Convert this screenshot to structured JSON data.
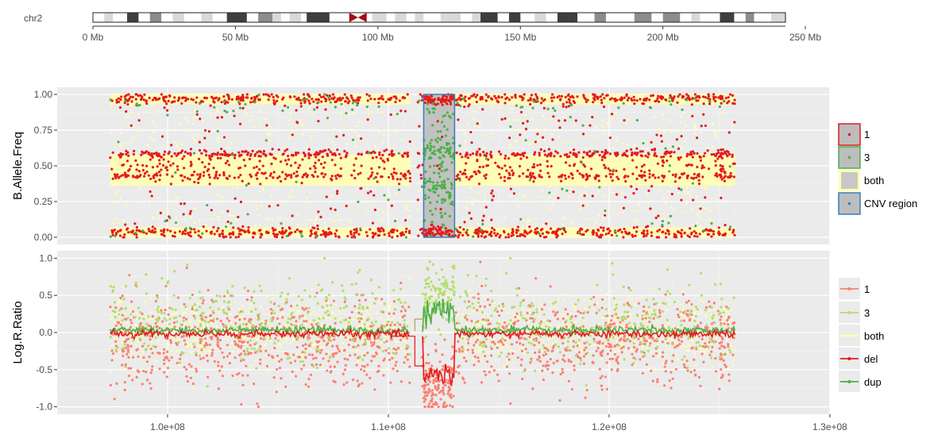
{
  "chart_data": [
    {
      "type": "ideogram",
      "chromosome_label": "chr2",
      "unit": "Mb",
      "xlim": [
        0,
        243
      ],
      "tick_labels": [
        "0 Mb",
        "50 Mb",
        "100 Mb",
        "150 Mb",
        "200 Mb",
        "250 Mb"
      ],
      "tick_values": [
        0,
        50,
        100,
        150,
        200,
        250
      ],
      "centromere_mb": 93,
      "bands": [
        {
          "start": 0,
          "end": 4,
          "stain": "white"
        },
        {
          "start": 4,
          "end": 7,
          "stain": "lightgray"
        },
        {
          "start": 7,
          "end": 12,
          "stain": "white"
        },
        {
          "start": 12,
          "end": 16,
          "stain": "darkgray"
        },
        {
          "start": 16,
          "end": 20,
          "stain": "white"
        },
        {
          "start": 20,
          "end": 24,
          "stain": "gray"
        },
        {
          "start": 24,
          "end": 28,
          "stain": "white"
        },
        {
          "start": 28,
          "end": 32,
          "stain": "lightgray"
        },
        {
          "start": 32,
          "end": 38,
          "stain": "white"
        },
        {
          "start": 38,
          "end": 42,
          "stain": "lightgray"
        },
        {
          "start": 42,
          "end": 47,
          "stain": "white"
        },
        {
          "start": 47,
          "end": 54,
          "stain": "darkgray"
        },
        {
          "start": 54,
          "end": 58,
          "stain": "white"
        },
        {
          "start": 58,
          "end": 63,
          "stain": "gray"
        },
        {
          "start": 63,
          "end": 66,
          "stain": "lightgray"
        },
        {
          "start": 66,
          "end": 69,
          "stain": "white"
        },
        {
          "start": 69,
          "end": 73,
          "stain": "lightgray"
        },
        {
          "start": 73,
          "end": 75,
          "stain": "white"
        },
        {
          "start": 75,
          "end": 83,
          "stain": "darkgray"
        },
        {
          "start": 83,
          "end": 90,
          "stain": "white"
        },
        {
          "start": 96,
          "end": 98,
          "stain": "white"
        },
        {
          "start": 98,
          "end": 103,
          "stain": "lightgray"
        },
        {
          "start": 103,
          "end": 106,
          "stain": "white"
        },
        {
          "start": 106,
          "end": 110,
          "stain": "lightgray"
        },
        {
          "start": 110,
          "end": 113,
          "stain": "white"
        },
        {
          "start": 113,
          "end": 116,
          "stain": "lightgray"
        },
        {
          "start": 116,
          "end": 122,
          "stain": "white"
        },
        {
          "start": 122,
          "end": 129,
          "stain": "lightgray"
        },
        {
          "start": 129,
          "end": 133,
          "stain": "white"
        },
        {
          "start": 133,
          "end": 136,
          "stain": "lightgray"
        },
        {
          "start": 136,
          "end": 142,
          "stain": "darkgray"
        },
        {
          "start": 142,
          "end": 146,
          "stain": "white"
        },
        {
          "start": 146,
          "end": 150,
          "stain": "darkgray"
        },
        {
          "start": 150,
          "end": 155,
          "stain": "white"
        },
        {
          "start": 155,
          "end": 159,
          "stain": "lightgray"
        },
        {
          "start": 159,
          "end": 163,
          "stain": "white"
        },
        {
          "start": 163,
          "end": 170,
          "stain": "darkgray"
        },
        {
          "start": 170,
          "end": 176,
          "stain": "white"
        },
        {
          "start": 176,
          "end": 180,
          "stain": "gray"
        },
        {
          "start": 180,
          "end": 190,
          "stain": "white"
        },
        {
          "start": 190,
          "end": 196,
          "stain": "gray"
        },
        {
          "start": 196,
          "end": 200,
          "stain": "white"
        },
        {
          "start": 200,
          "end": 206,
          "stain": "gray"
        },
        {
          "start": 206,
          "end": 210,
          "stain": "white"
        },
        {
          "start": 210,
          "end": 213,
          "stain": "lightgray"
        },
        {
          "start": 213,
          "end": 220,
          "stain": "white"
        },
        {
          "start": 220,
          "end": 225,
          "stain": "darkgray"
        },
        {
          "start": 225,
          "end": 229,
          "stain": "white"
        },
        {
          "start": 229,
          "end": 232,
          "stain": "gray"
        },
        {
          "start": 232,
          "end": 238,
          "stain": "white"
        },
        {
          "start": 238,
          "end": 243,
          "stain": "lightgray"
        }
      ]
    },
    {
      "type": "scatter",
      "ylabel": "B.Allele.Freq",
      "xlim": [
        95000000,
        130000000
      ],
      "ylim": [
        -0.05,
        1.05
      ],
      "y_ticks": [
        0,
        0.25,
        0.5,
        0.75,
        1
      ],
      "y_tick_labels": [
        "0.00",
        "0.25",
        "0.50",
        "0.75",
        "1.00"
      ],
      "grid": true,
      "legend_position": "right",
      "cnv_region": {
        "x_start": 111600000,
        "x_end": 113000000,
        "y_start": 0,
        "y_end": 1
      },
      "legend": [
        {
          "label": "1",
          "color": "#e41a1c",
          "kind": "point-box"
        },
        {
          "label": "3",
          "color": "#4daf4a",
          "kind": "point-box"
        },
        {
          "label": "both",
          "color": "#ffffb3",
          "kind": "fill"
        },
        {
          "label": "CNV region",
          "color": "#377eb8",
          "kind": "region"
        }
      ],
      "series": [
        {
          "name": "both",
          "color": "#ffffb3",
          "x_range": [
            97400000,
            125700000
          ],
          "bands": [
            0.99,
            0.94,
            0.5,
            0.42,
            0.06,
            0.01
          ]
        },
        {
          "name": "1",
          "color": "#e41a1c",
          "x_range": [
            97400000,
            125700000
          ],
          "bands": [
            0.97,
            0.92,
            0.56,
            0.44,
            0.08,
            0.02
          ]
        },
        {
          "name": "3",
          "color": "#4daf4a",
          "x_range": [
            97400000,
            125700000
          ],
          "bands": [
            0.92,
            0.5,
            0.08
          ]
        }
      ]
    },
    {
      "type": "scatter",
      "ylabel": "Log.R.Ratio",
      "xlim": [
        95000000,
        130000000
      ],
      "ylim": [
        -1.1,
        1.1
      ],
      "y_ticks": [
        -1,
        -0.5,
        0,
        0.5,
        1
      ],
      "y_tick_labels": [
        "-1.0",
        "-0.5",
        "0.0",
        "0.5",
        "1.0"
      ],
      "x_ticks": [
        100000000,
        110000000,
        120000000,
        130000000
      ],
      "x_tick_labels": [
        "1.0e+08",
        "1.1e+08",
        "1.2e+08",
        "1.3e+08"
      ],
      "grid": true,
      "legend_position": "right",
      "legend": [
        {
          "label": "1",
          "color": "#fb8072",
          "kind": "point-line"
        },
        {
          "label": "3",
          "color": "#b3de69",
          "kind": "point-line"
        },
        {
          "label": "both",
          "color": "#ffffb3",
          "kind": "line"
        },
        {
          "label": "del",
          "color": "#e41a1c",
          "kind": "point-line"
        },
        {
          "label": "dup",
          "color": "#4daf4a",
          "kind": "point-line"
        }
      ],
      "series": [
        {
          "name": "1",
          "color": "#fb8072",
          "x_range": [
            97400000,
            125700000
          ],
          "center": -0.05,
          "spread": 0.45
        },
        {
          "name": "3",
          "color": "#b3de69",
          "x_range": [
            97400000,
            125700000
          ],
          "center": 0.1,
          "spread": 0.4
        },
        {
          "name": "both",
          "color": "#ffffb3",
          "x_range": [
            97400000,
            125700000
          ],
          "center": 0.02,
          "spread": 0.35
        },
        {
          "name": "del",
          "color": "#e41a1c",
          "x_range": [
            97400000,
            125700000
          ],
          "center": -0.02,
          "spread": 0.04
        },
        {
          "name": "dup",
          "color": "#4daf4a",
          "x_range": [
            97400000,
            125700000
          ],
          "center": 0.03,
          "spread": 0.04
        }
      ],
      "cnv_segment": {
        "x_start": 111600000,
        "x_end": 113000000,
        "del_level": -0.55,
        "dup_level": 0.28
      }
    }
  ]
}
